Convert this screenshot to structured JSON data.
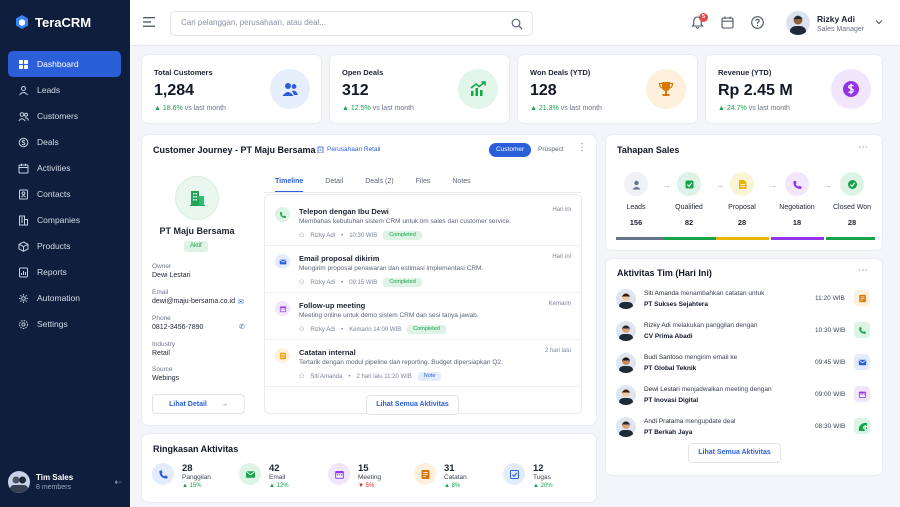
{
  "app": {
    "name": "TeraCRM"
  },
  "sidebar": {
    "items": [
      {
        "label": "Dashboard",
        "icon": "dashboard-icon",
        "active": true
      },
      {
        "label": "Leads",
        "icon": "leads-icon"
      },
      {
        "label": "Customers",
        "icon": "customers-icon"
      },
      {
        "label": "Deals",
        "icon": "deals-icon"
      },
      {
        "label": "Activities",
        "icon": "activities-icon"
      },
      {
        "label": "Contacts",
        "icon": "contacts-icon"
      },
      {
        "label": "Companies",
        "icon": "companies-icon"
      },
      {
        "label": "Products",
        "icon": "products-icon"
      },
      {
        "label": "Reports",
        "icon": "reports-icon"
      },
      {
        "label": "Automation",
        "icon": "automation-icon"
      },
      {
        "label": "Settings",
        "icon": "settings-icon"
      }
    ],
    "team": {
      "name": "Tim Sales",
      "members": "8 members"
    }
  },
  "topbar": {
    "search_placeholder": "Cari pelanggan, perusahaan, atau deal...",
    "notification_count": "5",
    "user": {
      "name": "Rizky Adi",
      "role": "Sales Manager"
    }
  },
  "stats": [
    {
      "label": "Total Customers",
      "value": "1,284",
      "change": "18.6%",
      "suffix": "vs last month",
      "color": "#2b5fd9",
      "bg": "#e6eefc",
      "icon": "users-icon"
    },
    {
      "label": "Open Deals",
      "value": "312",
      "change": "12.5%",
      "suffix": "vs last month",
      "color": "#16a34a",
      "bg": "#e2f5ea",
      "icon": "trend-up-icon"
    },
    {
      "label": "Won Deals (YTD)",
      "value": "128",
      "change": "21.3%",
      "suffix": "vs last month",
      "color": "#d97706",
      "bg": "#fdf0dc",
      "icon": "trophy-icon"
    },
    {
      "label": "Revenue (YTD)",
      "value": "Rp 2.45 M",
      "change": "24.7%",
      "suffix": "vs last month",
      "color": "#9333ea",
      "bg": "#f1e6fc",
      "icon": "dollar-icon"
    }
  ],
  "journey": {
    "title": "Customer Journey - PT Maju Bersama",
    "chip": "Perusahaan Retail",
    "toggle": [
      "Customer",
      "Prospect"
    ],
    "company": "PT Maju Bersama",
    "status": "Aktif",
    "fields": [
      {
        "label": "Owner",
        "value": "Dewi Lestari"
      },
      {
        "label": "Email",
        "value": "dewi@maju-bersama.co.id"
      },
      {
        "label": "Phone",
        "value": "0812-3456-7890"
      },
      {
        "label": "Industry",
        "value": "Retail"
      },
      {
        "label": "Source",
        "value": "Webings"
      }
    ],
    "detail_button": "Lihat Detail",
    "tabs": [
      "Timeline",
      "Detail",
      "Deals (2)",
      "Files",
      "Notes"
    ],
    "timeline": [
      {
        "title": "Telepon dengan Ibu Dewi",
        "desc": "Membahas kebutuhan sistem CRM untuk tim sales dan customer service.",
        "user": "Rizky Adi",
        "time": "10:30 WIB",
        "badge": "Completed",
        "when": "Hari ini",
        "color": "#16a34a",
        "bg": "#dcf3e5",
        "icon": "phone-icon"
      },
      {
        "title": "Email proposal dikirim",
        "desc": "Mengirim proposal penawaran dan estimasi implementasi CRM.",
        "user": "Rizky Adi",
        "time": "09:15 WIB",
        "badge": "Completed",
        "when": "Hari ini",
        "color": "#2b5fd9",
        "bg": "#e3ecfd",
        "icon": "mail-icon"
      },
      {
        "title": "Follow-up meeting",
        "desc": "Meeting online untuk demo sistem CRM dan sesi tanya jawab.",
        "user": "Rizky Adi",
        "time": "Kemarin 14:00 WIB",
        "badge": "Completed",
        "when": "Kemarin",
        "color": "#9333ea",
        "bg": "#f1e6fc",
        "icon": "calendar-icon"
      },
      {
        "title": "Catatan internal",
        "desc": "Tertarik dengan modul pipeline dan reporting. Budget dipersiapkan Q2.",
        "user": "Siti Amanda",
        "time": "2 hari lalu 11:20 WIB",
        "badge": "Note",
        "when": "2 hari lalu",
        "color": "#f59e0b",
        "bg": "#fdf0dc",
        "icon": "note-icon"
      }
    ],
    "all_button": "Lihat Semua Aktivitas"
  },
  "pipeline": {
    "title": "Tahapan Sales",
    "stages": [
      {
        "name": "Leads",
        "value": "156",
        "color": "#64748b",
        "bg": "#eef1f6",
        "icon": "user-icon"
      },
      {
        "name": "Qualified",
        "value": "82",
        "color": "#16a34a",
        "bg": "#dcf3e5",
        "icon": "qualified-icon"
      },
      {
        "name": "Proposal",
        "value": "28",
        "color": "#eab308",
        "bg": "#fdf3d6",
        "icon": "document-icon"
      },
      {
        "name": "Negotiation",
        "value": "18",
        "color": "#9333ea",
        "bg": "#f1e6fc",
        "icon": "handshake-icon"
      },
      {
        "name": "Closed Won",
        "value": "28",
        "color": "#16a34a",
        "bg": "#dcf3e5",
        "icon": "check-icon"
      }
    ]
  },
  "team_activity": {
    "title": "Aktivitas Tim (Hari Ini)",
    "items": [
      {
        "user": "Siti Amanda",
        "action": "menambahkan catatan untuk",
        "target": "PT Sukses Sejahtera",
        "time": "11:20 WIB",
        "color": "#d97706",
        "bg": "#fdf0dc",
        "icon": "note-icon"
      },
      {
        "user": "Rizky Adi",
        "action": "melakukan panggilan dengan",
        "target": "CV Prima Abadi",
        "time": "10:30 WIB",
        "color": "#16a34a",
        "bg": "#dcf3e5",
        "icon": "phone-icon"
      },
      {
        "user": "Budi Santoso",
        "action": "mengirim email ke",
        "target": "PT Global Teknik",
        "time": "09:45 WIB",
        "color": "#2b5fd9",
        "bg": "#e3ecfd",
        "icon": "mail-icon"
      },
      {
        "user": "Dewi Lestari",
        "action": "menjadwalkan meeting dengan",
        "target": "PT Inovasi Digital",
        "time": "09:00 WIB",
        "color": "#9333ea",
        "bg": "#f1e6fc",
        "icon": "calendar-icon"
      },
      {
        "user": "Andi Pratama",
        "action": "mengupdate deal",
        "target": "PT Berkah Jaya",
        "time": "08:30 WIB",
        "color": "#16a34a",
        "bg": "#dcf3e5",
        "icon": "dollar-icon"
      }
    ],
    "all_button": "Lihat Semua Aktivitas"
  },
  "summary": {
    "title": "Ringkasan Aktivitas",
    "items": [
      {
        "value": "28",
        "label": "Panggilan",
        "change": "15%",
        "dir": "up",
        "color": "#2b5fd9",
        "bg": "#e3ecfd",
        "icon": "phone-icon"
      },
      {
        "value": "42",
        "label": "Email",
        "change": "12%",
        "dir": "up",
        "color": "#16a34a",
        "bg": "#dcf3e5",
        "icon": "mail-icon"
      },
      {
        "value": "15",
        "label": "Meeting",
        "change": "5%",
        "dir": "down",
        "color": "#9333ea",
        "bg": "#f1e6fc",
        "icon": "calendar-icon"
      },
      {
        "value": "31",
        "label": "Catatan",
        "change": "8%",
        "dir": "up",
        "color": "#d97706",
        "bg": "#fdf0dc",
        "icon": "note-icon"
      },
      {
        "value": "12",
        "label": "Tugas",
        "change": "20%",
        "dir": "up",
        "color": "#2b5fd9",
        "bg": "#e3ecfd",
        "icon": "task-icon"
      }
    ]
  }
}
